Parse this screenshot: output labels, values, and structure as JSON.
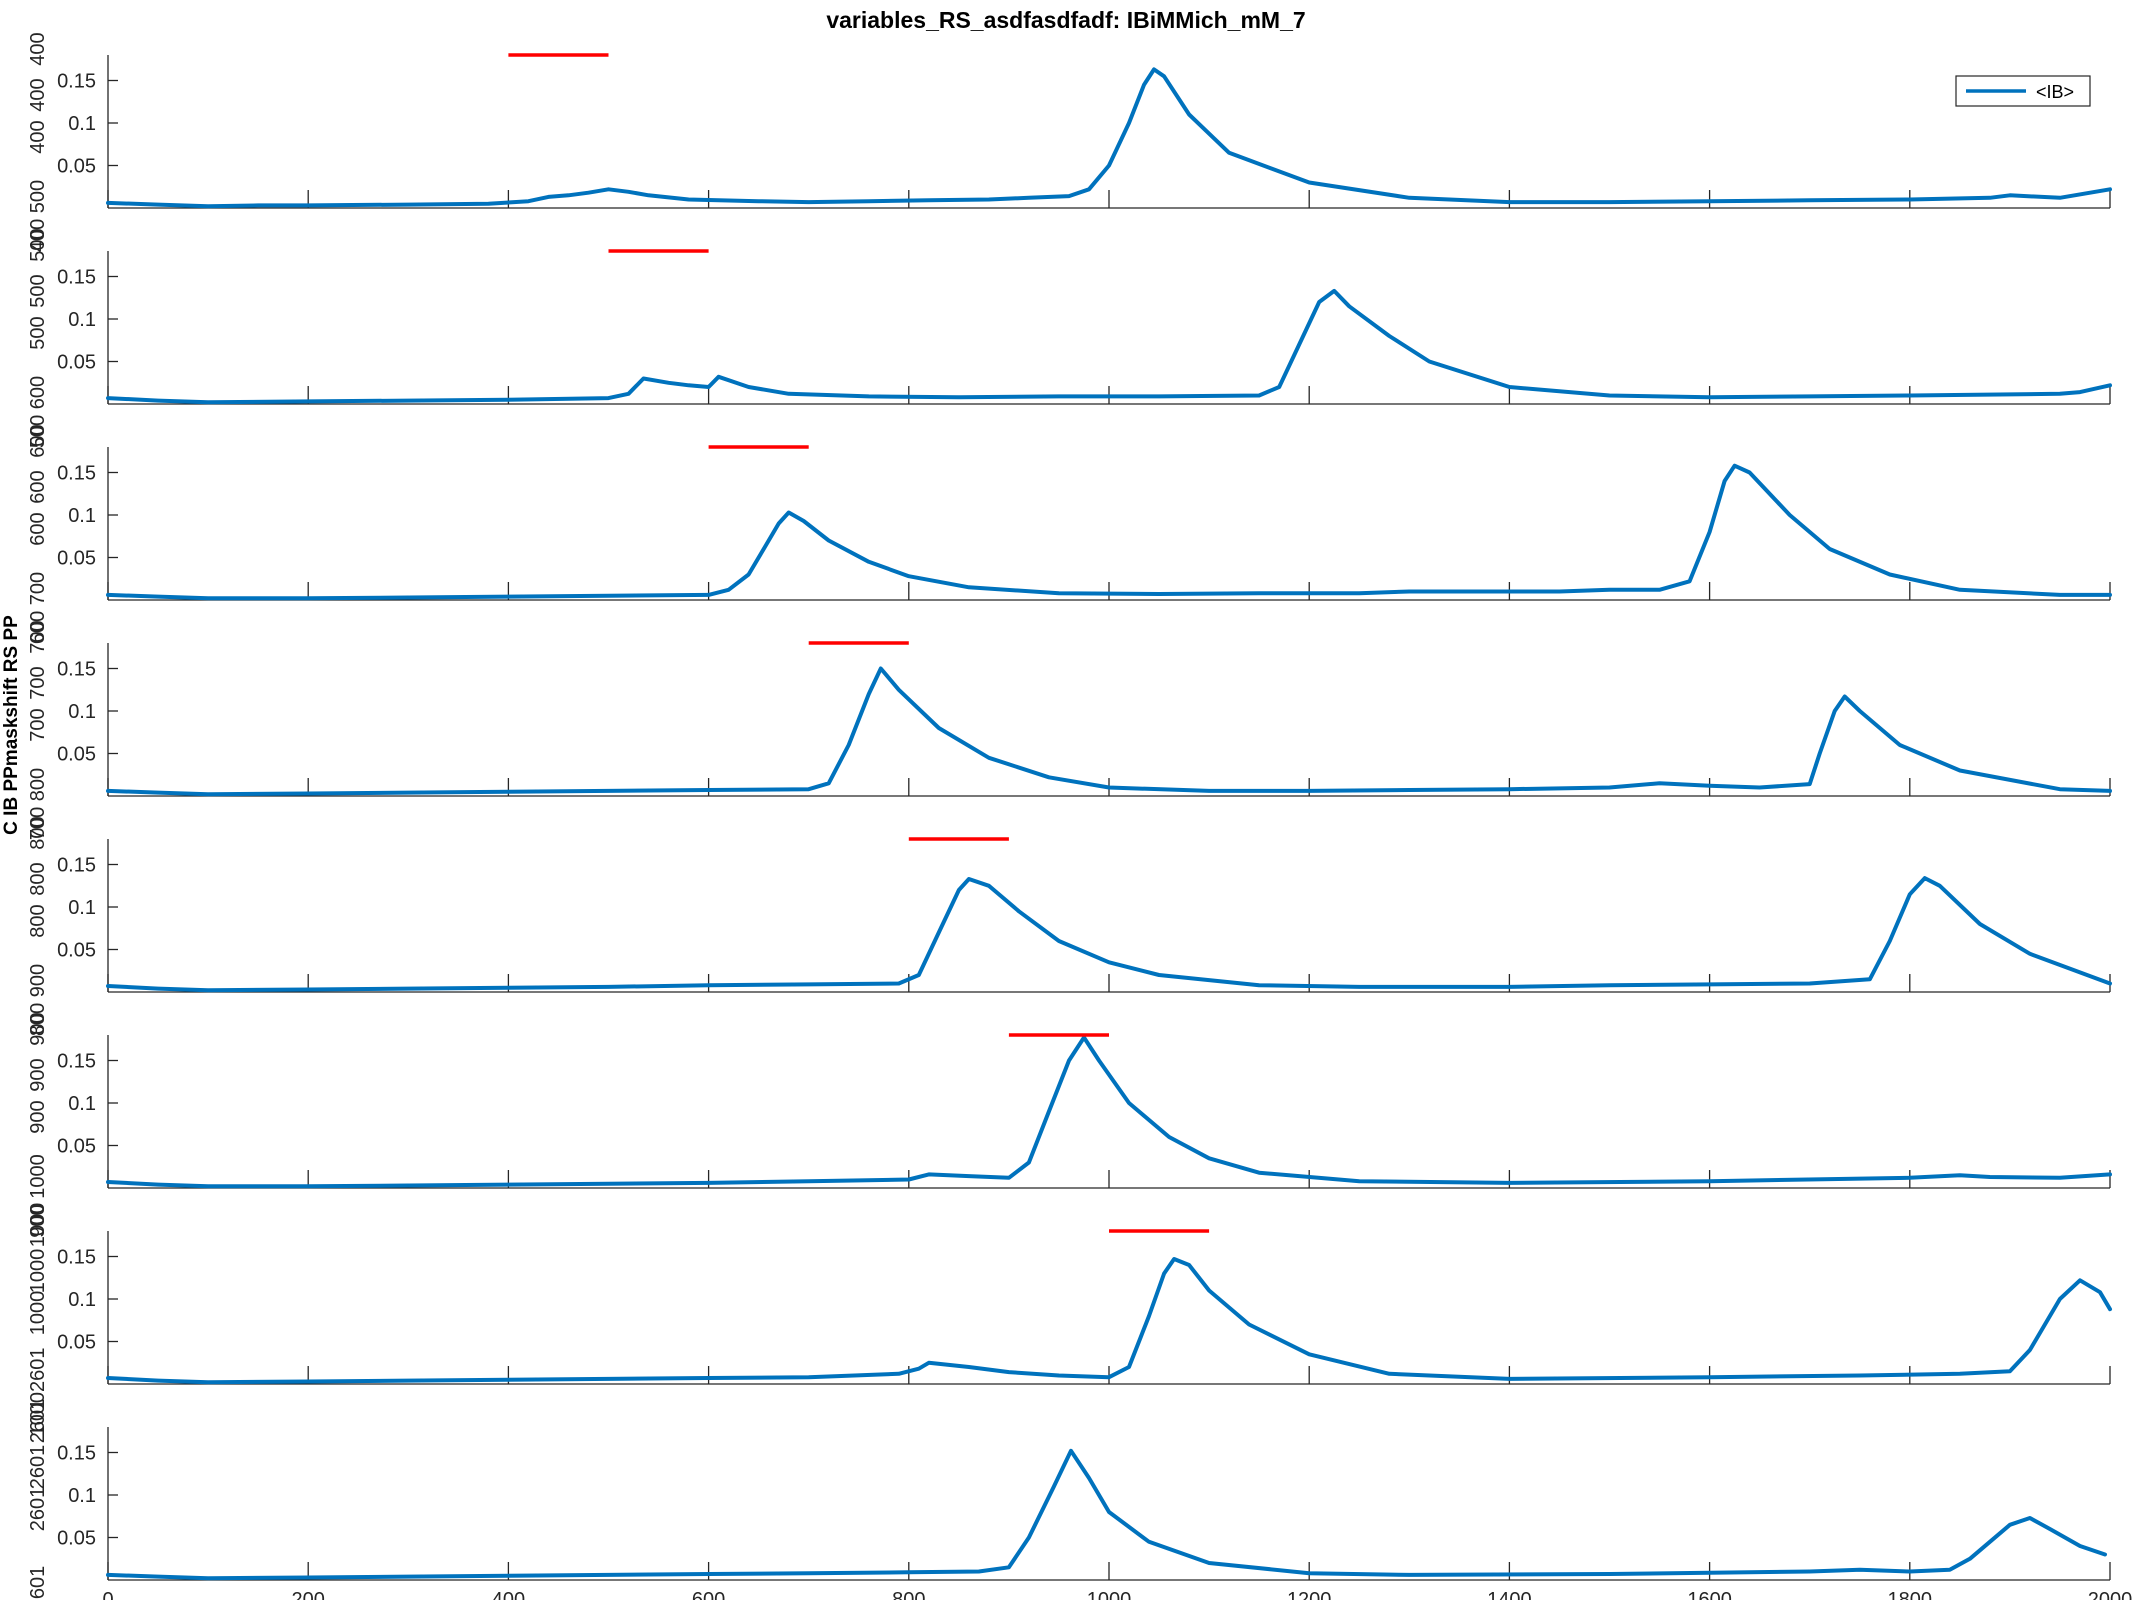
{
  "chart_data": {
    "type": "line",
    "title": "variables_RS_asdfasdfadf: IBiMMich_mM_7",
    "ylabel": "C IB PPmaskshift RS PP",
    "legend": {
      "label": "<IB>",
      "position": "top-right"
    },
    "colors": {
      "series": "#0072BD",
      "marker": "#FF0000",
      "axis": "#262626"
    },
    "xlim": [
      0,
      2000
    ],
    "ylim": [
      0,
      0.18
    ],
    "x_ticks": [
      0,
      200,
      400,
      600,
      800,
      1000,
      1200,
      1400,
      1600,
      1800,
      2000
    ],
    "y_ticks": [
      0.05,
      0.1,
      0.15
    ],
    "y_tick_labels": [
      "0.05",
      "0.1",
      "0.15"
    ],
    "x_tick_labels_visible_on_last_only": true,
    "panels": [
      {
        "overlap_labels": [
          "400",
          "400",
          "400",
          "400 500"
        ],
        "marker_span": [
          400,
          500
        ],
        "points": [
          [
            0,
            0.006
          ],
          [
            50,
            0.004
          ],
          [
            100,
            0.002
          ],
          [
            150,
            0.003
          ],
          [
            200,
            0.003
          ],
          [
            300,
            0.004
          ],
          [
            380,
            0.005
          ],
          [
            420,
            0.008
          ],
          [
            440,
            0.013
          ],
          [
            460,
            0.015
          ],
          [
            480,
            0.018
          ],
          [
            500,
            0.022
          ],
          [
            520,
            0.019
          ],
          [
            540,
            0.015
          ],
          [
            580,
            0.01
          ],
          [
            650,
            0.008
          ],
          [
            700,
            0.007
          ],
          [
            760,
            0.008
          ],
          [
            820,
            0.009
          ],
          [
            880,
            0.01
          ],
          [
            920,
            0.012
          ],
          [
            960,
            0.014
          ],
          [
            980,
            0.022
          ],
          [
            1000,
            0.05
          ],
          [
            1020,
            0.1
          ],
          [
            1035,
            0.145
          ],
          [
            1045,
            0.163
          ],
          [
            1055,
            0.155
          ],
          [
            1080,
            0.11
          ],
          [
            1120,
            0.065
          ],
          [
            1200,
            0.03
          ],
          [
            1300,
            0.012
          ],
          [
            1400,
            0.007
          ],
          [
            1500,
            0.007
          ],
          [
            1600,
            0.008
          ],
          [
            1700,
            0.009
          ],
          [
            1800,
            0.01
          ],
          [
            1880,
            0.012
          ],
          [
            1900,
            0.015
          ],
          [
            1950,
            0.012
          ],
          [
            2000,
            0.022
          ]
        ]
      },
      {
        "overlap_labels": [
          "500",
          "500",
          "500",
          "500 600"
        ],
        "marker_span": [
          500,
          600
        ],
        "points": [
          [
            0,
            0.007
          ],
          [
            50,
            0.004
          ],
          [
            100,
            0.002
          ],
          [
            200,
            0.003
          ],
          [
            300,
            0.004
          ],
          [
            400,
            0.005
          ],
          [
            500,
            0.007
          ],
          [
            520,
            0.012
          ],
          [
            535,
            0.03
          ],
          [
            560,
            0.025
          ],
          [
            580,
            0.022
          ],
          [
            600,
            0.02
          ],
          [
            610,
            0.032
          ],
          [
            640,
            0.02
          ],
          [
            680,
            0.012
          ],
          [
            760,
            0.009
          ],
          [
            850,
            0.008
          ],
          [
            950,
            0.009
          ],
          [
            1050,
            0.009
          ],
          [
            1150,
            0.01
          ],
          [
            1170,
            0.02
          ],
          [
            1190,
            0.07
          ],
          [
            1210,
            0.12
          ],
          [
            1225,
            0.133
          ],
          [
            1240,
            0.115
          ],
          [
            1280,
            0.08
          ],
          [
            1320,
            0.05
          ],
          [
            1400,
            0.02
          ],
          [
            1500,
            0.01
          ],
          [
            1600,
            0.008
          ],
          [
            1700,
            0.009
          ],
          [
            1800,
            0.01
          ],
          [
            1950,
            0.012
          ],
          [
            1970,
            0.014
          ],
          [
            2000,
            0.022
          ]
        ]
      },
      {
        "overlap_labels": [
          "600",
          "600",
          "600",
          "600 700"
        ],
        "marker_span": [
          600,
          700
        ],
        "points": [
          [
            0,
            0.006
          ],
          [
            50,
            0.004
          ],
          [
            100,
            0.002
          ],
          [
            200,
            0.002
          ],
          [
            300,
            0.003
          ],
          [
            400,
            0.004
          ],
          [
            500,
            0.005
          ],
          [
            600,
            0.006
          ],
          [
            620,
            0.012
          ],
          [
            640,
            0.03
          ],
          [
            655,
            0.06
          ],
          [
            670,
            0.09
          ],
          [
            680,
            0.103
          ],
          [
            695,
            0.093
          ],
          [
            720,
            0.07
          ],
          [
            760,
            0.045
          ],
          [
            800,
            0.028
          ],
          [
            860,
            0.015
          ],
          [
            950,
            0.008
          ],
          [
            1050,
            0.007
          ],
          [
            1150,
            0.008
          ],
          [
            1250,
            0.008
          ],
          [
            1300,
            0.01
          ],
          [
            1350,
            0.01
          ],
          [
            1450,
            0.01
          ],
          [
            1500,
            0.012
          ],
          [
            1550,
            0.012
          ],
          [
            1580,
            0.022
          ],
          [
            1600,
            0.08
          ],
          [
            1615,
            0.14
          ],
          [
            1625,
            0.158
          ],
          [
            1640,
            0.15
          ],
          [
            1680,
            0.1
          ],
          [
            1720,
            0.06
          ],
          [
            1780,
            0.03
          ],
          [
            1850,
            0.012
          ],
          [
            1950,
            0.006
          ],
          [
            2000,
            0.006
          ]
        ]
      },
      {
        "overlap_labels": [
          "700",
          "700",
          "700",
          "700 800"
        ],
        "marker_span": [
          700,
          800
        ],
        "points": [
          [
            0,
            0.006
          ],
          [
            50,
            0.004
          ],
          [
            100,
            0.002
          ],
          [
            200,
            0.003
          ],
          [
            300,
            0.004
          ],
          [
            400,
            0.005
          ],
          [
            500,
            0.006
          ],
          [
            600,
            0.007
          ],
          [
            700,
            0.008
          ],
          [
            720,
            0.015
          ],
          [
            740,
            0.06
          ],
          [
            760,
            0.12
          ],
          [
            772,
            0.15
          ],
          [
            790,
            0.125
          ],
          [
            830,
            0.08
          ],
          [
            880,
            0.045
          ],
          [
            940,
            0.022
          ],
          [
            1000,
            0.01
          ],
          [
            1100,
            0.006
          ],
          [
            1200,
            0.006
          ],
          [
            1300,
            0.007
          ],
          [
            1400,
            0.008
          ],
          [
            1500,
            0.01
          ],
          [
            1550,
            0.015
          ],
          [
            1600,
            0.012
          ],
          [
            1650,
            0.01
          ],
          [
            1700,
            0.014
          ],
          [
            1710,
            0.05
          ],
          [
            1725,
            0.1
          ],
          [
            1735,
            0.117
          ],
          [
            1750,
            0.1
          ],
          [
            1790,
            0.06
          ],
          [
            1850,
            0.03
          ],
          [
            1950,
            0.008
          ],
          [
            2000,
            0.006
          ]
        ]
      },
      {
        "overlap_labels": [
          "800",
          "800",
          "800",
          "800 900"
        ],
        "marker_span": [
          800,
          900
        ],
        "points": [
          [
            0,
            0.007
          ],
          [
            50,
            0.004
          ],
          [
            100,
            0.002
          ],
          [
            200,
            0.003
          ],
          [
            300,
            0.004
          ],
          [
            400,
            0.005
          ],
          [
            500,
            0.006
          ],
          [
            600,
            0.008
          ],
          [
            700,
            0.009
          ],
          [
            790,
            0.01
          ],
          [
            810,
            0.02
          ],
          [
            830,
            0.07
          ],
          [
            850,
            0.12
          ],
          [
            860,
            0.133
          ],
          [
            880,
            0.125
          ],
          [
            910,
            0.095
          ],
          [
            950,
            0.06
          ],
          [
            1000,
            0.035
          ],
          [
            1050,
            0.02
          ],
          [
            1150,
            0.008
          ],
          [
            1250,
            0.006
          ],
          [
            1400,
            0.006
          ],
          [
            1500,
            0.008
          ],
          [
            1600,
            0.009
          ],
          [
            1700,
            0.01
          ],
          [
            1760,
            0.015
          ],
          [
            1780,
            0.06
          ],
          [
            1800,
            0.115
          ],
          [
            1815,
            0.134
          ],
          [
            1830,
            0.125
          ],
          [
            1870,
            0.08
          ],
          [
            1920,
            0.045
          ],
          [
            2000,
            0.01
          ]
        ]
      },
      {
        "overlap_labels": [
          "900",
          "900",
          "900",
          "900 1000"
        ],
        "marker_span": [
          900,
          1000
        ],
        "points": [
          [
            0,
            0.007
          ],
          [
            50,
            0.004
          ],
          [
            100,
            0.002
          ],
          [
            200,
            0.002
          ],
          [
            300,
            0.003
          ],
          [
            400,
            0.004
          ],
          [
            500,
            0.005
          ],
          [
            600,
            0.006
          ],
          [
            700,
            0.008
          ],
          [
            800,
            0.01
          ],
          [
            820,
            0.016
          ],
          [
            860,
            0.014
          ],
          [
            900,
            0.012
          ],
          [
            920,
            0.03
          ],
          [
            940,
            0.09
          ],
          [
            960,
            0.15
          ],
          [
            975,
            0.177
          ],
          [
            990,
            0.15
          ],
          [
            1020,
            0.1
          ],
          [
            1060,
            0.06
          ],
          [
            1100,
            0.035
          ],
          [
            1150,
            0.018
          ],
          [
            1250,
            0.008
          ],
          [
            1400,
            0.006
          ],
          [
            1600,
            0.008
          ],
          [
            1800,
            0.012
          ],
          [
            1850,
            0.015
          ],
          [
            1880,
            0.013
          ],
          [
            1950,
            0.012
          ],
          [
            2000,
            0.016
          ]
        ]
      },
      {
        "overlap_labels": [
          "1000",
          "1000",
          "1000",
          "10002601"
        ],
        "marker_span": [
          1000,
          1100
        ],
        "points": [
          [
            0,
            0.007
          ],
          [
            50,
            0.004
          ],
          [
            100,
            0.002
          ],
          [
            200,
            0.003
          ],
          [
            300,
            0.004
          ],
          [
            400,
            0.005
          ],
          [
            500,
            0.006
          ],
          [
            600,
            0.007
          ],
          [
            700,
            0.008
          ],
          [
            790,
            0.012
          ],
          [
            810,
            0.018
          ],
          [
            820,
            0.025
          ],
          [
            860,
            0.02
          ],
          [
            900,
            0.014
          ],
          [
            950,
            0.01
          ],
          [
            1000,
            0.008
          ],
          [
            1020,
            0.02
          ],
          [
            1040,
            0.08
          ],
          [
            1055,
            0.13
          ],
          [
            1065,
            0.147
          ],
          [
            1080,
            0.14
          ],
          [
            1100,
            0.11
          ],
          [
            1140,
            0.07
          ],
          [
            1200,
            0.035
          ],
          [
            1280,
            0.012
          ],
          [
            1400,
            0.006
          ],
          [
            1600,
            0.008
          ],
          [
            1750,
            0.01
          ],
          [
            1850,
            0.012
          ],
          [
            1900,
            0.015
          ],
          [
            1920,
            0.04
          ],
          [
            1950,
            0.1
          ],
          [
            1970,
            0.122
          ],
          [
            1990,
            0.108
          ],
          [
            2000,
            0.088
          ]
        ]
      },
      {
        "overlap_labels": [
          "2601",
          "2601",
          "2601",
          "2601"
        ],
        "marker_span": null,
        "points": [
          [
            0,
            0.006
          ],
          [
            50,
            0.004
          ],
          [
            100,
            0.002
          ],
          [
            200,
            0.003
          ],
          [
            300,
            0.004
          ],
          [
            400,
            0.005
          ],
          [
            500,
            0.006
          ],
          [
            600,
            0.007
          ],
          [
            700,
            0.008
          ],
          [
            800,
            0.009
          ],
          [
            870,
            0.01
          ],
          [
            900,
            0.015
          ],
          [
            920,
            0.05
          ],
          [
            945,
            0.11
          ],
          [
            962,
            0.152
          ],
          [
            980,
            0.12
          ],
          [
            1000,
            0.08
          ],
          [
            1040,
            0.045
          ],
          [
            1100,
            0.02
          ],
          [
            1200,
            0.008
          ],
          [
            1300,
            0.006
          ],
          [
            1500,
            0.007
          ],
          [
            1700,
            0.01
          ],
          [
            1750,
            0.012
          ],
          [
            1800,
            0.01
          ],
          [
            1840,
            0.012
          ],
          [
            1860,
            0.025
          ],
          [
            1880,
            0.045
          ],
          [
            1900,
            0.065
          ],
          [
            1920,
            0.073
          ],
          [
            1940,
            0.06
          ],
          [
            1970,
            0.04
          ],
          [
            1995,
            0.03
          ]
        ]
      }
    ]
  }
}
